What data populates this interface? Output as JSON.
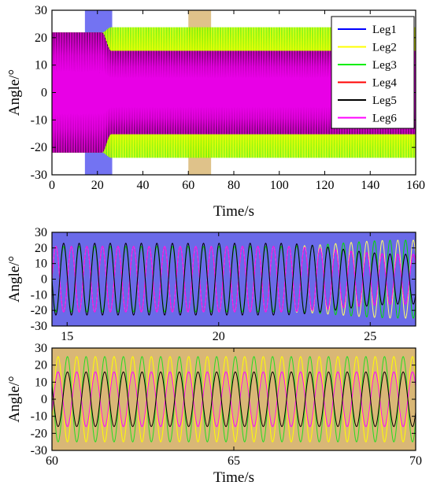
{
  "chart_data": [
    {
      "type": "line",
      "panel": "overview",
      "xlabel": "Time/s",
      "ylabel": "Angle/°",
      "xlim": [
        0,
        160
      ],
      "ylim": [
        -30,
        30
      ],
      "xticks": [
        0,
        20,
        40,
        60,
        80,
        100,
        120,
        140,
        160
      ],
      "yticks": [
        -30,
        -20,
        -10,
        0,
        10,
        20,
        30
      ],
      "grid": false,
      "legend_position": "top-right",
      "highlight_bands": [
        {
          "x": [
            14.5,
            26.5
          ],
          "color": "#5b5bf0"
        },
        {
          "x": [
            60,
            70
          ],
          "color": "#d9b776"
        }
      ],
      "series": [
        {
          "name": "Leg1",
          "color": "#0000ff",
          "amplitude_before": 23,
          "amplitude_after": 16,
          "frequency_hz": 2.0,
          "phase_deg": 180
        },
        {
          "name": "Leg2",
          "color": "#ffff00",
          "amplitude_before": 23,
          "amplitude_after": 25,
          "frequency_hz": 2.0,
          "phase_deg": 0
        },
        {
          "name": "Leg3",
          "color": "#00ee00",
          "amplitude_before": 23,
          "amplitude_after": 25,
          "frequency_hz": 2.0,
          "phase_deg": 180
        },
        {
          "name": "Leg4",
          "color": "#ff0000",
          "amplitude_before": 23,
          "amplitude_after": 16,
          "frequency_hz": 2.0,
          "phase_deg": 0
        },
        {
          "name": "Leg5",
          "color": "#000000",
          "amplitude_before": 23,
          "amplitude_after": 16,
          "frequency_hz": 2.0,
          "phase_deg": 180
        },
        {
          "name": "Leg6",
          "color": "#ff00ff",
          "amplitude_before": 23,
          "amplitude_after": 16,
          "frequency_hz": 2.0,
          "phase_deg": 0
        }
      ]
    },
    {
      "type": "line",
      "panel": "zoom-transition",
      "xlabel": "",
      "ylabel": "Angle/°",
      "xlim": [
        14.5,
        26.5
      ],
      "ylim": [
        -30,
        30
      ],
      "xticks": [
        15,
        20,
        25
      ],
      "yticks": [
        -30,
        -20,
        -10,
        0,
        10,
        20,
        30
      ],
      "background": "#6a6ae8",
      "transition": [
        22,
        26
      ],
      "series": [
        {
          "name": "Leg2",
          "color": "#ffff66",
          "amplitude_before": 21,
          "amplitude_after": 25,
          "frequency_hz": 1.95,
          "phase_deg": 0
        },
        {
          "name": "Leg3",
          "color": "#00dd00",
          "amplitude_before": 21,
          "amplitude_after": 25,
          "frequency_hz": 1.95,
          "phase_deg": 180
        },
        {
          "name": "Leg4",
          "color": "#ff2222",
          "amplitude_before": 21,
          "amplitude_after": 16,
          "frequency_hz": 1.95,
          "phase_deg": 0
        },
        {
          "name": "Leg6",
          "color": "#ff00ff",
          "amplitude_before": 21,
          "amplitude_after": 16,
          "frequency_hz": 1.95,
          "phase_deg": 0
        },
        {
          "name": "Leg5",
          "color": "#000000",
          "amplitude_before": 23,
          "amplitude_after": 16,
          "frequency_hz": 1.95,
          "phase_deg": 180
        }
      ]
    },
    {
      "type": "line",
      "panel": "zoom-steady",
      "xlabel": "Time/s",
      "ylabel": "Angle/°",
      "xlim": [
        60,
        70
      ],
      "ylim": [
        -30,
        30
      ],
      "xticks": [
        60,
        65,
        70
      ],
      "yticks": [
        -30,
        -20,
        -10,
        0,
        10,
        20,
        30
      ],
      "background": "#d9b776",
      "series": [
        {
          "name": "Leg2",
          "color": "#ffff00",
          "amplitude": 25,
          "frequency_hz": 1.95,
          "phase_deg": 0
        },
        {
          "name": "Leg3",
          "color": "#22dd22",
          "amplitude": 25,
          "frequency_hz": 1.95,
          "phase_deg": 180
        },
        {
          "name": "Leg6",
          "color": "#ff00ff",
          "amplitude": 16,
          "frequency_hz": 1.95,
          "phase_deg": 0
        },
        {
          "name": "Leg5",
          "color": "#000000",
          "amplitude": 16,
          "frequency_hz": 1.95,
          "phase_deg": 180
        }
      ]
    }
  ]
}
